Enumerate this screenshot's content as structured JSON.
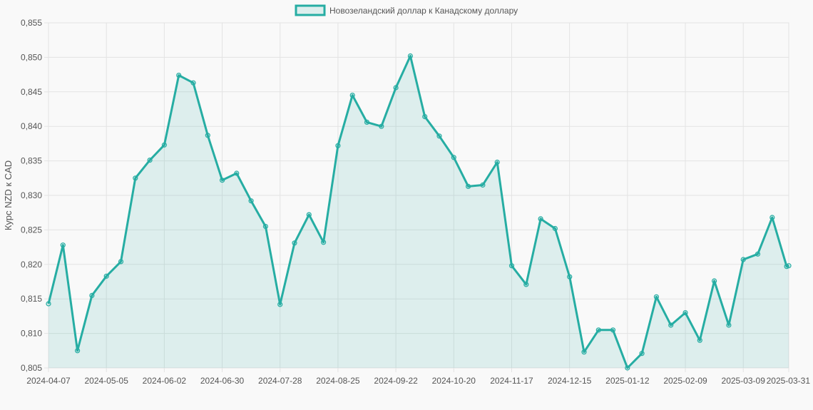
{
  "chart_data": {
    "type": "area",
    "legend_label": "Новозеландский доллар к Канадскому доллару",
    "legend_position": "top",
    "ylabel": "Курс NZD к CAD",
    "ylim": [
      0.805,
      0.855
    ],
    "y_ticks": [
      "0,855",
      "0,850",
      "0,845",
      "0,840",
      "0,835",
      "0,830",
      "0,825",
      "0,820",
      "0,815",
      "0,810",
      "0,805"
    ],
    "x_ticks": [
      "2024-04-07",
      "2024-05-05",
      "2024-06-02",
      "2024-06-30",
      "2024-07-28",
      "2024-08-25",
      "2024-09-22",
      "2024-10-20",
      "2024-11-17",
      "2024-12-15",
      "2025-01-12",
      "2025-02-09",
      "2025-03-09",
      "2025-03-31"
    ],
    "grid": true,
    "colors": {
      "line": "#26ada3",
      "fill": "rgba(38,173,163,0.13)",
      "grid": "#e3e3e3"
    },
    "series": [
      {
        "name": "Новозеландский доллар к Канадскому доллару",
        "x": [
          "2024-04-07",
          "2024-04-14",
          "2024-04-21",
          "2024-04-28",
          "2024-05-05",
          "2024-05-12",
          "2024-05-19",
          "2024-05-26",
          "2024-06-02",
          "2024-06-09",
          "2024-06-16",
          "2024-06-23",
          "2024-06-30",
          "2024-07-07",
          "2024-07-14",
          "2024-07-21",
          "2024-07-28",
          "2024-08-04",
          "2024-08-11",
          "2024-08-18",
          "2024-08-25",
          "2024-09-01",
          "2024-09-08",
          "2024-09-15",
          "2024-09-22",
          "2024-09-29",
          "2024-10-06",
          "2024-10-13",
          "2024-10-20",
          "2024-10-27",
          "2024-11-03",
          "2024-11-10",
          "2024-11-17",
          "2024-11-24",
          "2024-12-01",
          "2024-12-08",
          "2024-12-15",
          "2024-12-22",
          "2024-12-29",
          "2025-01-05",
          "2025-01-12",
          "2025-01-19",
          "2025-01-26",
          "2025-02-02",
          "2025-02-09",
          "2025-02-16",
          "2025-02-23",
          "2025-03-02",
          "2025-03-09",
          "2025-03-16",
          "2025-03-23",
          "2025-03-30",
          "2025-03-31"
        ],
        "values": [
          0.8143,
          0.8228,
          0.8075,
          0.8155,
          0.8183,
          0.8204,
          0.8325,
          0.8351,
          0.8373,
          0.8474,
          0.8463,
          0.8387,
          0.8322,
          0.8332,
          0.8292,
          0.8255,
          0.8142,
          0.8231,
          0.8272,
          0.8232,
          0.8372,
          0.8445,
          0.8406,
          0.84,
          0.8456,
          0.8502,
          0.8414,
          0.8386,
          0.8355,
          0.8313,
          0.8315,
          0.8348,
          0.8198,
          0.8171,
          0.8266,
          0.8252,
          0.8182,
          0.8073,
          0.8105,
          0.8105,
          0.805,
          0.8071,
          0.8153,
          0.8112,
          0.813,
          0.809,
          0.8176,
          0.8112,
          0.8207,
          0.8215,
          0.8268,
          0.8197,
          0.8198
        ]
      }
    ]
  }
}
